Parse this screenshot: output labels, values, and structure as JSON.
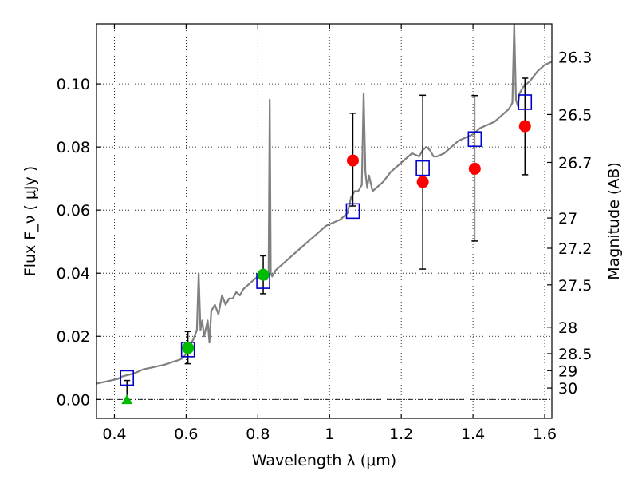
{
  "chart_data": {
    "type": "scatter",
    "xlabel": "Wavelength  λ (μm)",
    "ylabel": "Flux  F_ν  ( μJy )",
    "ylabel_right": "Magnitude (AB)",
    "xlim": [
      0.35,
      1.62
    ],
    "ylim": [
      -0.006,
      0.119
    ],
    "grid": true,
    "x_ticks": [
      0.4,
      0.6,
      0.8,
      1.0,
      1.2,
      1.4,
      1.6
    ],
    "x_tick_labels": [
      "0.4",
      "0.6",
      "0.8",
      "1",
      "1.2",
      "1.4",
      "1.6"
    ],
    "y_ticks": [
      0.0,
      0.02,
      0.04,
      0.06,
      0.08,
      0.1
    ],
    "y_tick_labels": [
      "0.00",
      "0.02",
      "0.04",
      "0.06",
      "0.08",
      "0.10"
    ],
    "right_ticks": [
      {
        "label": "26.3",
        "flux": 0.1085
      },
      {
        "label": "26.5",
        "flux": 0.0903
      },
      {
        "label": "26.7",
        "flux": 0.0751
      },
      {
        "label": "27",
        "flux": 0.0575
      },
      {
        "label": "27.2",
        "flux": 0.0479
      },
      {
        "label": "27.5",
        "flux": 0.0363
      },
      {
        "label": "28",
        "flux": 0.0229
      },
      {
        "label": "28.5",
        "flux": 0.0145
      },
      {
        "label": "29",
        "flux": 0.0091
      },
      {
        "label": "30",
        "flux": 0.0036
      }
    ],
    "model_spectrum": {
      "color": "#808080",
      "x": [
        0.35,
        0.37,
        0.39,
        0.41,
        0.42,
        0.43,
        0.44,
        0.45,
        0.46,
        0.47,
        0.48,
        0.5,
        0.52,
        0.54,
        0.56,
        0.58,
        0.59,
        0.6,
        0.61,
        0.62,
        0.63,
        0.635,
        0.64,
        0.645,
        0.65,
        0.66,
        0.665,
        0.67,
        0.68,
        0.69,
        0.7,
        0.71,
        0.72,
        0.73,
        0.74,
        0.75,
        0.76,
        0.77,
        0.78,
        0.79,
        0.8,
        0.81,
        0.82,
        0.825,
        0.83,
        0.833,
        0.836,
        0.84,
        0.85,
        0.87,
        0.89,
        0.91,
        0.93,
        0.95,
        0.97,
        0.99,
        1.01,
        1.03,
        1.05,
        1.06,
        1.07,
        1.08,
        1.09,
        1.095,
        1.1,
        1.105,
        1.11,
        1.12,
        1.13,
        1.15,
        1.17,
        1.19,
        1.21,
        1.23,
        1.25,
        1.26,
        1.27,
        1.28,
        1.29,
        1.3,
        1.32,
        1.34,
        1.36,
        1.38,
        1.4,
        1.42,
        1.44,
        1.46,
        1.48,
        1.5,
        1.51,
        1.515,
        1.52,
        1.525,
        1.53,
        1.54,
        1.55,
        1.56,
        1.58,
        1.6,
        1.62
      ],
      "y": [
        0.005,
        0.0055,
        0.006,
        0.0065,
        0.0072,
        0.0075,
        0.0078,
        0.0081,
        0.0085,
        0.009,
        0.0095,
        0.01,
        0.0105,
        0.011,
        0.0118,
        0.0125,
        0.013,
        0.0145,
        0.017,
        0.019,
        0.022,
        0.04,
        0.022,
        0.025,
        0.02,
        0.025,
        0.018,
        0.028,
        0.03,
        0.027,
        0.033,
        0.03,
        0.032,
        0.032,
        0.034,
        0.033,
        0.035,
        0.036,
        0.037,
        0.038,
        0.039,
        0.039,
        0.04,
        0.038,
        0.04,
        0.095,
        0.04,
        0.039,
        0.041,
        0.043,
        0.045,
        0.047,
        0.049,
        0.051,
        0.053,
        0.055,
        0.056,
        0.057,
        0.059,
        0.064,
        0.066,
        0.066,
        0.068,
        0.097,
        0.072,
        0.067,
        0.071,
        0.066,
        0.067,
        0.069,
        0.072,
        0.074,
        0.076,
        0.078,
        0.077,
        0.079,
        0.08,
        0.079,
        0.077,
        0.077,
        0.078,
        0.08,
        0.082,
        0.083,
        0.084,
        0.086,
        0.087,
        0.088,
        0.09,
        0.092,
        0.094,
        0.119,
        0.095,
        0.093,
        0.097,
        0.099,
        0.1,
        0.101,
        0.104,
        0.106,
        0.107
      ]
    },
    "series": [
      {
        "marker": "square-open",
        "color": "#0000cc",
        "x": [
          0.435,
          0.605,
          0.815,
          1.065,
          1.26,
          1.405,
          1.545
        ],
        "y": [
          0.0068,
          0.0158,
          0.0375,
          0.0597,
          0.0733,
          0.0825,
          0.0942
        ]
      },
      {
        "marker": "circle-filled",
        "color": "#00bb00",
        "x": [
          0.605,
          0.815
        ],
        "y": [
          0.0163,
          0.0395
        ],
        "yerr_low": [
          0.0113,
          0.0335
        ],
        "yerr_high": [
          0.0215,
          0.0455
        ]
      },
      {
        "marker": "triangle-filled",
        "color": "#00bb00",
        "x": [
          0.435
        ],
        "y": [
          -0.0002
        ],
        "yerr_low": [
          -0.0002
        ],
        "yerr_high": [
          0.006
        ]
      },
      {
        "marker": "circle-filled",
        "color": "#ff0000",
        "x": [
          1.065,
          1.26,
          1.405,
          1.545
        ],
        "y": [
          0.0757,
          0.0689,
          0.0731,
          0.0866
        ],
        "yerr_low": [
          0.0613,
          0.0413,
          0.0502,
          0.0712
        ],
        "yerr_high": [
          0.0907,
          0.0964,
          0.0963,
          0.1018
        ]
      }
    ]
  }
}
